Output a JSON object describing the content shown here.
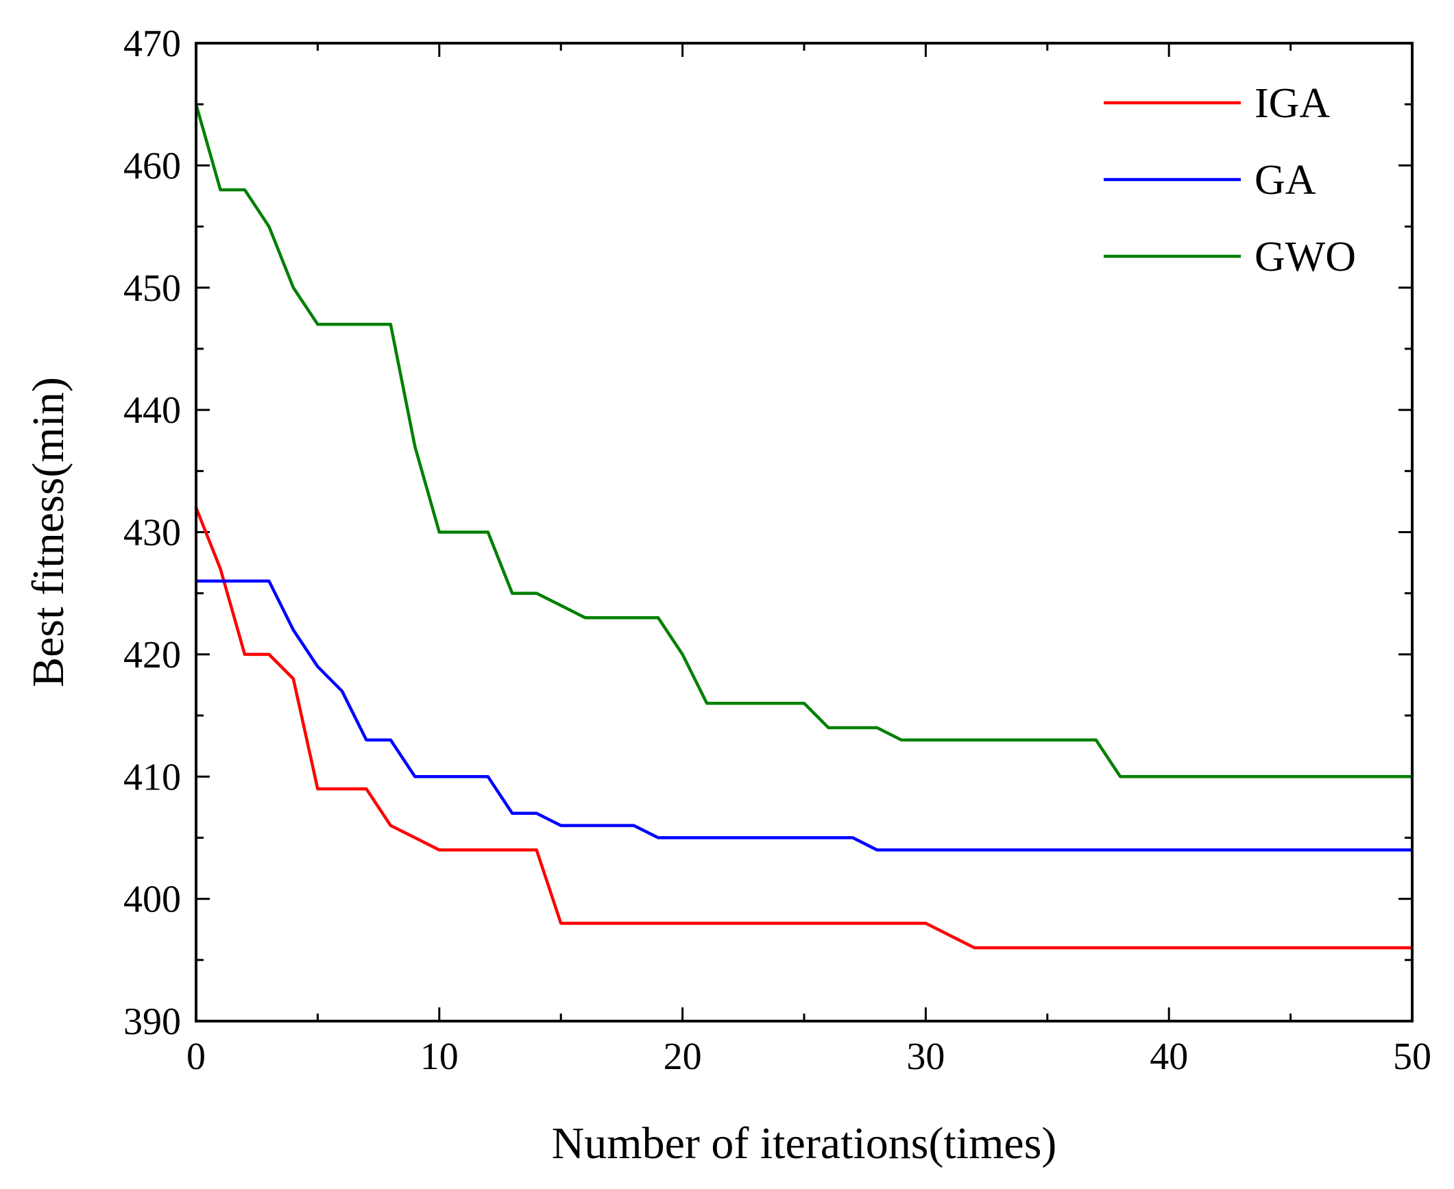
{
  "chart_data": {
    "type": "line",
    "title": "",
    "xlabel": "Number of iterations(times)",
    "ylabel": "Best fitness(min)",
    "xlim": [
      0,
      50
    ],
    "ylim": [
      390,
      470
    ],
    "xticks": [
      0,
      10,
      20,
      30,
      40,
      50
    ],
    "yticks": [
      390,
      400,
      410,
      420,
      430,
      440,
      450,
      460,
      470
    ],
    "grid": false,
    "legend_position": "top-right",
    "series": [
      {
        "name": "IGA",
        "color": "#ff0000",
        "x": [
          0,
          1,
          2,
          3,
          4,
          5,
          6,
          7,
          8,
          9,
          10,
          11,
          12,
          13,
          14,
          15,
          16,
          17,
          18,
          19,
          20,
          21,
          22,
          23,
          24,
          25,
          26,
          27,
          28,
          29,
          30,
          31,
          32,
          33,
          34,
          35,
          36,
          37,
          38,
          39,
          40,
          41,
          42,
          43,
          44,
          45,
          46,
          47,
          48,
          49,
          50
        ],
        "values": [
          432,
          427,
          420,
          420,
          418,
          409,
          409,
          409,
          406,
          405,
          404,
          404,
          404,
          404,
          404,
          398,
          398,
          398,
          398,
          398,
          398,
          398,
          398,
          398,
          398,
          398,
          398,
          398,
          398,
          398,
          398,
          397,
          396,
          396,
          396,
          396,
          396,
          396,
          396,
          396,
          396,
          396,
          396,
          396,
          396,
          396,
          396,
          396,
          396,
          396,
          396
        ]
      },
      {
        "name": "GA",
        "color": "#0000ff",
        "x": [
          0,
          1,
          2,
          3,
          4,
          5,
          6,
          7,
          8,
          9,
          10,
          11,
          12,
          13,
          14,
          15,
          16,
          17,
          18,
          19,
          20,
          21,
          22,
          23,
          24,
          25,
          26,
          27,
          28,
          29,
          30,
          31,
          32,
          33,
          34,
          35,
          36,
          37,
          38,
          39,
          40,
          41,
          42,
          43,
          44,
          45,
          46,
          47,
          48,
          49,
          50
        ],
        "values": [
          426,
          426,
          426,
          426,
          422,
          419,
          417,
          413,
          413,
          410,
          410,
          410,
          410,
          407,
          407,
          406,
          406,
          406,
          406,
          405,
          405,
          405,
          405,
          405,
          405,
          405,
          405,
          405,
          404,
          404,
          404,
          404,
          404,
          404,
          404,
          404,
          404,
          404,
          404,
          404,
          404,
          404,
          404,
          404,
          404,
          404,
          404,
          404,
          404,
          404,
          404
        ]
      },
      {
        "name": "GWO",
        "color": "#008000",
        "x": [
          0,
          1,
          2,
          3,
          4,
          5,
          6,
          7,
          8,
          9,
          10,
          11,
          12,
          13,
          14,
          15,
          16,
          17,
          18,
          19,
          20,
          21,
          22,
          23,
          24,
          25,
          26,
          27,
          28,
          29,
          30,
          31,
          32,
          33,
          34,
          35,
          36,
          37,
          38,
          39,
          40,
          41,
          42,
          43,
          44,
          45,
          46,
          47,
          48,
          49,
          50
        ],
        "values": [
          465,
          458,
          458,
          455,
          450,
          447,
          447,
          447,
          447,
          437,
          430,
          430,
          430,
          425,
          425,
          424,
          423,
          423,
          423,
          423,
          420,
          416,
          416,
          416,
          416,
          416,
          414,
          414,
          414,
          413,
          413,
          413,
          413,
          413,
          413,
          413,
          413,
          413,
          410,
          410,
          410,
          410,
          410,
          410,
          410,
          410,
          410,
          410,
          410,
          410,
          410
        ]
      }
    ]
  }
}
